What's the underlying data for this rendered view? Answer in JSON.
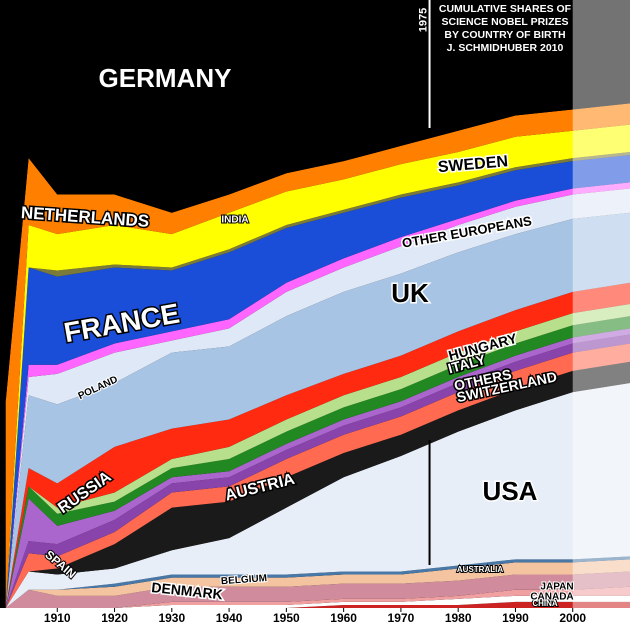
{
  "chart_data": {
    "type": "stacked_area",
    "title": [
      "CUMULATIVE SHARES OF",
      "SCIENCE NOBEL PRIZES",
      "BY COUNTRY OF BIRTH",
      "J. SCHMIDHUBER 2010"
    ],
    "annotations": [
      {
        "x": 1975,
        "text": "1975"
      }
    ],
    "x": [
      1901,
      1905,
      1910,
      1920,
      1930,
      1940,
      1950,
      1960,
      1970,
      1980,
      1990,
      2000,
      2010
    ],
    "xlim": [
      1900,
      2010
    ],
    "xticks": [
      1910,
      1920,
      1930,
      1940,
      1950,
      1960,
      1970,
      1980,
      1990,
      2000
    ],
    "ylim": [
      0,
      100
    ],
    "series": [
      {
        "name": "CHINA",
        "color": "#cc2222",
        "values": [
          0,
          0,
          0,
          0,
          0,
          0,
          0,
          0.5,
          0.5,
          0.5,
          1,
          1,
          1
        ]
      },
      {
        "name": "CANADA",
        "color": "#ffffff",
        "values": [
          0,
          0,
          0,
          0,
          0.5,
          0.5,
          0.5,
          0.5,
          0.5,
          1,
          1,
          1,
          1
        ]
      },
      {
        "name": "JAPAN",
        "color": "#f0a0a0",
        "values": [
          0,
          0,
          0,
          0,
          0.5,
          0.5,
          0.5,
          0.5,
          0.5,
          0.5,
          1,
          1,
          1.5
        ]
      },
      {
        "name": "DENMARK",
        "color": "#d08c9c",
        "values": [
          0,
          3,
          2,
          2,
          2.5,
          2.5,
          2.5,
          2.5,
          2.5,
          2.5,
          2.5,
          2.5,
          2.5
        ]
      },
      {
        "name": "BELGIUM",
        "color": "#f4c4a0",
        "values": [
          0,
          0,
          1,
          1.5,
          1.5,
          1.5,
          1.5,
          1.5,
          1.5,
          2,
          2,
          2,
          2
        ]
      },
      {
        "name": "AUSTRALIA",
        "color": "#4878a8",
        "values": [
          0,
          0,
          0,
          0.5,
          0.5,
          0.5,
          0.5,
          0.5,
          0.5,
          0.5,
          0.5,
          0.5,
          0.5
        ]
      },
      {
        "name": "USA",
        "color": "#e8eef8",
        "values": [
          0,
          3,
          2.5,
          2.5,
          4,
          6,
          11,
          15.5,
          19,
          22,
          24.5,
          27.5,
          28.5
        ]
      },
      {
        "name": "AUSTRIA",
        "color": "#1a1a1a",
        "values": [
          0,
          0,
          1,
          4,
          7,
          6,
          5,
          4,
          3.5,
          3.5,
          3.5,
          3.5,
          3.5
        ]
      },
      {
        "name": "SWITZERLAND",
        "color": "#ff6a50",
        "values": [
          0,
          3,
          2,
          2,
          2.5,
          2.5,
          3,
          3,
          3,
          3,
          3,
          3,
          3
        ]
      },
      {
        "name": "OTHERS",
        "color": "#8844aa",
        "values": [
          0,
          2,
          2,
          2,
          1.5,
          1.5,
          1.5,
          1.5,
          1.5,
          1.5,
          1.5,
          1.5,
          1.5
        ]
      },
      {
        "name": "SPAIN",
        "color": "#aa66cc",
        "values": [
          0,
          7,
          3,
          1.5,
          1,
          1,
          1,
          1,
          1,
          1,
          1,
          1,
          1
        ]
      },
      {
        "name": "ITALY",
        "color": "#228822",
        "values": [
          0,
          2,
          2,
          1.5,
          1.5,
          2,
          2,
          2,
          2,
          2,
          2,
          2,
          2
        ]
      },
      {
        "name": "HUNGARY",
        "color": "#b8e08c",
        "values": [
          0,
          0,
          1,
          1.5,
          1.5,
          2,
          2,
          2,
          2,
          2,
          2,
          2,
          2
        ]
      },
      {
        "name": "RUSSIA",
        "color": "#ff2a10",
        "values": [
          0,
          3,
          4,
          7.5,
          5,
          4.5,
          4,
          3.5,
          3.5,
          3.5,
          3.5,
          3.5,
          3.5
        ]
      },
      {
        "name": "UK",
        "color": "#a8c4e4",
        "values": [
          0,
          12,
          13,
          10.5,
          12.5,
          12,
          13,
          13.5,
          13.5,
          13,
          12.5,
          12,
          11.5
        ]
      },
      {
        "name": "OTHER EUROPEANS",
        "color": "#dfe8f6",
        "values": [
          0,
          3,
          5,
          5,
          2,
          3,
          4,
          4,
          4.5,
          4.5,
          4.5,
          4,
          4
        ]
      },
      {
        "name": "POLAND",
        "color": "#ff66ff",
        "values": [
          0,
          2,
          1.5,
          1.5,
          1.5,
          1.5,
          1.5,
          1.5,
          1.5,
          1,
          1,
          1,
          1
        ]
      },
      {
        "name": "FRANCE",
        "color": "#1a4ed8",
        "values": [
          0,
          16,
          14.5,
          12.5,
          10,
          11,
          9,
          7.5,
          6.5,
          5.5,
          5,
          4.5,
          4.5
        ]
      },
      {
        "name": "INDIA",
        "color": "#7a7a3a",
        "values": [
          0,
          0,
          1,
          0.5,
          0.5,
          0.5,
          0.5,
          0.5,
          0.5,
          0.5,
          0.5,
          0.5,
          0.5
        ]
      },
      {
        "name": "SWEDEN",
        "color": "#ffff00",
        "values": [
          0,
          7,
          6,
          6.5,
          5.5,
          6,
          5.5,
          5,
          5,
          5,
          5,
          4.5,
          4.5
        ]
      },
      {
        "name": "NETHERLANDS",
        "color": "#ff8000",
        "values": [
          34,
          11,
          6.5,
          5,
          3.5,
          3,
          3,
          3,
          3,
          3.5,
          3.5,
          3.5,
          3.5
        ]
      },
      {
        "name": "GERMANY",
        "color": "#000000",
        "values": [
          66,
          26,
          32,
          32,
          35,
          32,
          28.5,
          26.5,
          24,
          21.5,
          19,
          18,
          17
        ]
      }
    ]
  }
}
